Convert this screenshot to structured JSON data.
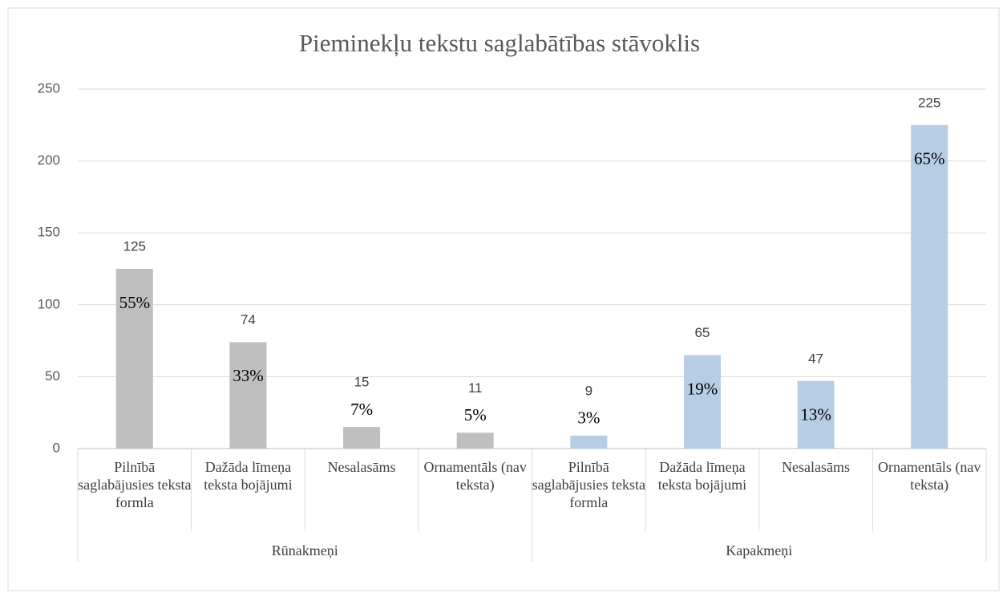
{
  "chart_data": {
    "type": "bar",
    "title": "Pieminekļu tekstu saglabātības stāvoklis",
    "groups": [
      {
        "name": "Rūnakmeņi",
        "color": "#bfbfbf",
        "categories": [
          "Pilnībā saglabājusies teksta formla",
          "Dažāda līmeņa teksta bojājumi",
          "Nesalasāms",
          "Ornamentāls (nav teksta)"
        ],
        "values": [
          125,
          74,
          15,
          11
        ],
        "share_labels": [
          "55%",
          "33%",
          "7%",
          "5%"
        ]
      },
      {
        "name": "Kapakmeņi",
        "color": "#b7cde6",
        "categories": [
          "Pilnībā saglabājusies teksta formla",
          "Dažāda līmeņa teksta bojājumi",
          "Nesalasāms",
          "Ornamentāls (nav teksta)"
        ],
        "values": [
          9,
          65,
          47,
          225
        ],
        "share_labels": [
          "3%",
          "19%",
          "13%",
          "65%"
        ]
      }
    ],
    "ylim": [
      0,
      250
    ],
    "yticks": [
      0,
      50,
      100,
      150,
      200,
      250
    ],
    "grid": true
  }
}
